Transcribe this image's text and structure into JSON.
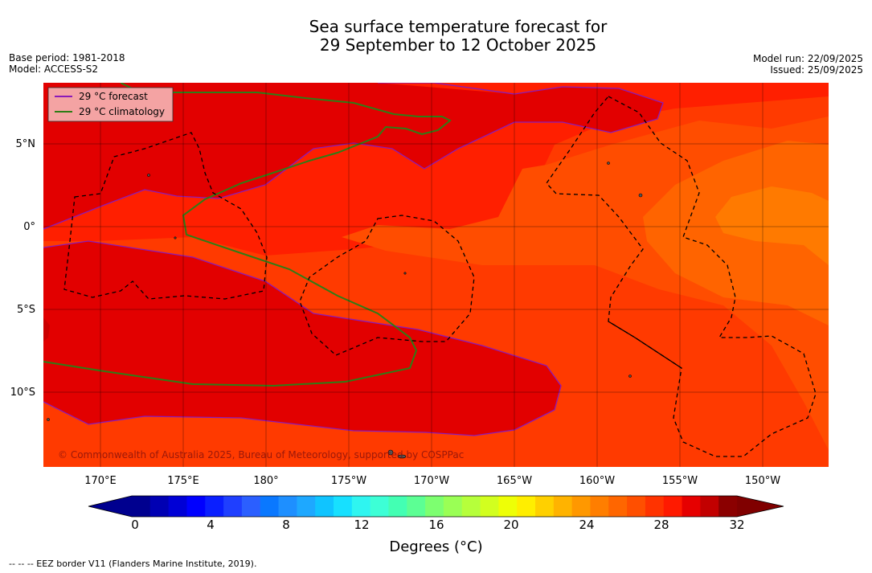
{
  "title": {
    "line1": "Sea surface temperature forecast for",
    "line2": "29 September to 12 October 2025"
  },
  "meta_left": {
    "base_period": "Base period: 1981-2018",
    "model": "Model: ACCESS-S2"
  },
  "meta_right": {
    "model_run": "Model run: 22/09/2025",
    "issued": "Issued: 25/09/2025"
  },
  "legend": {
    "forecast": "29 °C  forecast",
    "climatology": "29 °C  climatology",
    "forecast_color": "#8b1ab8",
    "climatology_color": "#2e7d16"
  },
  "lat_labels": [
    "5°N",
    "0°",
    "5°S",
    "10°S"
  ],
  "lon_labels": [
    "170°E",
    "175°E",
    "180°",
    "175°W",
    "170°W",
    "165°W",
    "160°W",
    "155°W",
    "150°W"
  ],
  "copyright": "© Commonwealth of Australia 2025, Bureau of Meteorology, supported by COSPPac",
  "colorbar": {
    "tick_labels": [
      "0",
      "4",
      "8",
      "12",
      "16",
      "20",
      "24",
      "28",
      "32"
    ],
    "label": "Degrees (°C)",
    "colors": [
      "#00008f",
      "#0000b3",
      "#0000d6",
      "#0000ff",
      "#0a1fff",
      "#1f3fff",
      "#2b5fff",
      "#0a78ff",
      "#1e8fff",
      "#1ea8ff",
      "#10c4ff",
      "#17e0ff",
      "#2ff5f0",
      "#3dffd6",
      "#43ffb3",
      "#5cff94",
      "#7dff70",
      "#9aff55",
      "#b6ff3b",
      "#d2ff1f",
      "#eeff06",
      "#ffee00",
      "#ffd000",
      "#ffb300",
      "#ff9800",
      "#ff7e00",
      "#ff6600",
      "#ff4f00",
      "#ff3300",
      "#ff1a00",
      "#e60000",
      "#c20000",
      "#8b0000"
    ],
    "under_color": "#00008f",
    "over_color": "#800000"
  },
  "footnote": "--  --  -- EEZ border V11 (Flanders Marine Institute, 2019)."
}
